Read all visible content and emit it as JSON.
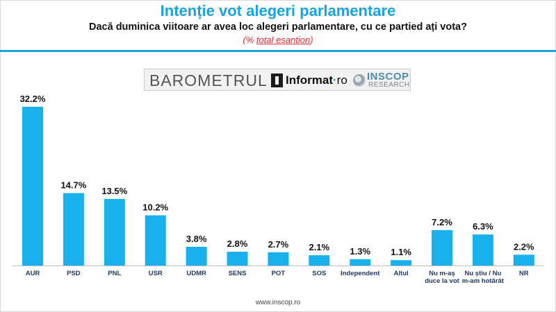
{
  "header": {
    "title": "Intenție vot alegeri parlamentare",
    "subtitle": "Dacă duminica viitoare ar avea loc alegeri parlamentare, cu ce partied ați vota?",
    "note_prefix": "(% ",
    "note_underlined": "total esantion",
    "note_suffix": ")"
  },
  "logos": {
    "barometrul": "BAROMETRUL",
    "informat": "Informat",
    "informat_suffix": "ro",
    "inscop": "INSCOP",
    "research": "RESEARCH"
  },
  "footer": {
    "url": "www.inscop.ro"
  },
  "colors": {
    "accent": "#19a3e0",
    "bar": "#19b0ee",
    "note": "#e0262d"
  },
  "chart_data": {
    "type": "bar",
    "categories": [
      "AUR",
      "PSD",
      "PNL",
      "USR",
      "UDMR",
      "SENS",
      "POT",
      "SOS",
      "Independent",
      "Altul",
      "Nu m-aș duce la vot",
      "Nu știu / Nu m-am hotărât",
      "NR"
    ],
    "category_lines": [
      [
        "AUR"
      ],
      [
        "PSD"
      ],
      [
        "PNL"
      ],
      [
        "USR"
      ],
      [
        "UDMR"
      ],
      [
        "SENS"
      ],
      [
        "POT"
      ],
      [
        "SOS"
      ],
      [
        "Independent"
      ],
      [
        "Altul"
      ],
      [
        "Nu m-aș",
        "duce la vot"
      ],
      [
        "Nu știu / Nu",
        "m-am hotărât"
      ],
      [
        "NR"
      ]
    ],
    "values": [
      32.2,
      14.7,
      13.5,
      10.2,
      3.8,
      2.8,
      2.7,
      2.1,
      1.3,
      1.1,
      7.2,
      6.3,
      2.2
    ],
    "labels": [
      "32.2%",
      "14.7%",
      "13.5%",
      "10.2%",
      "3.8%",
      "2.8%",
      "2.7%",
      "2.1%",
      "1.3%",
      "1.1%",
      "7.2%",
      "6.3%",
      "2.2%"
    ],
    "unit": "%",
    "ylim": [
      0,
      32.2
    ],
    "grid": false,
    "legend": "none"
  }
}
